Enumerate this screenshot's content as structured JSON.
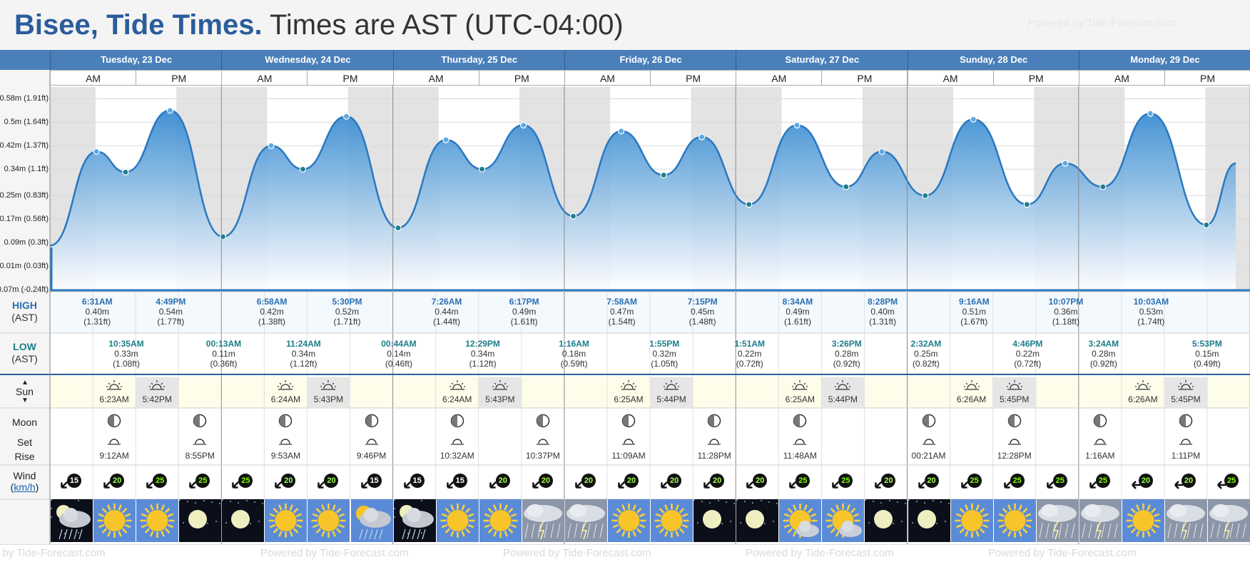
{
  "header": {
    "place": "Bisee, Tide Times.",
    "timezone": "Times are AST (UTC-04:00)",
    "powered": "Powered by Tide-Forecast.com"
  },
  "axis_labels": [
    "0.58m (1.91ft)",
    "0.5m (1.64ft)",
    "0.42m (1.37ft)",
    "0.34m (1.1ft)",
    "0.25m (0.83ft)",
    "0.17m (0.56ft)",
    "0.09m (0.3ft)",
    "0.01m (0.03ft)",
    "-0.07m (-0.24ft)"
  ],
  "days": [
    "Tuesday, 23 Dec",
    "Wednesday, 24 Dec",
    "Thursday, 25 Dec",
    "Friday, 26 Dec",
    "Saturday, 27 Dec",
    "Sunday, 28 Dec",
    "Monday, 29 Dec"
  ],
  "ampm": [
    "AM",
    "PM"
  ],
  "row_labels": {
    "high": "HIGH",
    "low": "LOW",
    "tz": "(AST)",
    "sun": "Sun",
    "moon": "Moon",
    "set": "Set",
    "rise": "Rise",
    "wind": "Wind",
    "wind_unit": "km/h"
  },
  "colors": {
    "brand": "#2b5d9b",
    "day_header": "#4a7fba",
    "tide_fill": "#2f86cf",
    "night_band": "#e3e3e3",
    "sun_row": "#fdfdea"
  },
  "chart_data": {
    "type": "area",
    "title": "Bisee, Tide Times.",
    "subtitle": "Times are AST (UTC-04:00)",
    "ylabel": "",
    "xlabel": "",
    "ylim": [
      -0.07,
      0.62
    ],
    "unit": "m",
    "grid": true,
    "series": [
      {
        "name": "",
        "points": [
          {
            "day": 0,
            "time": "0:00",
            "height": 0.08
          },
          {
            "day": 0,
            "time": "6:31",
            "height": 0.4,
            "kind": "high"
          },
          {
            "day": 0,
            "time": "10:35",
            "height": 0.33,
            "kind": "low"
          },
          {
            "day": 0,
            "time": "16:49",
            "height": 0.54,
            "kind": "high"
          },
          {
            "day": 1,
            "time": "0:13",
            "height": 0.11,
            "kind": "low"
          },
          {
            "day": 1,
            "time": "6:58",
            "height": 0.42,
            "kind": "high"
          },
          {
            "day": 1,
            "time": "11:24",
            "height": 0.34,
            "kind": "low"
          },
          {
            "day": 1,
            "time": "17:30",
            "height": 0.52,
            "kind": "high"
          },
          {
            "day": 2,
            "time": "0:44",
            "height": 0.14,
            "kind": "low"
          },
          {
            "day": 2,
            "time": "7:26",
            "height": 0.44,
            "kind": "high"
          },
          {
            "day": 2,
            "time": "12:29",
            "height": 0.34,
            "kind": "low"
          },
          {
            "day": 2,
            "time": "18:17",
            "height": 0.49,
            "kind": "high"
          },
          {
            "day": 3,
            "time": "1:16",
            "height": 0.18,
            "kind": "low"
          },
          {
            "day": 3,
            "time": "7:58",
            "height": 0.47,
            "kind": "high"
          },
          {
            "day": 3,
            "time": "13:55",
            "height": 0.32,
            "kind": "low"
          },
          {
            "day": 3,
            "time": "19:15",
            "height": 0.45,
            "kind": "high"
          },
          {
            "day": 4,
            "time": "1:51",
            "height": 0.22,
            "kind": "low"
          },
          {
            "day": 4,
            "time": "8:34",
            "height": 0.49,
            "kind": "high"
          },
          {
            "day": 4,
            "time": "15:26",
            "height": 0.28,
            "kind": "low"
          },
          {
            "day": 4,
            "time": "20:28",
            "height": 0.4,
            "kind": "high"
          },
          {
            "day": 5,
            "time": "2:32",
            "height": 0.25,
            "kind": "low"
          },
          {
            "day": 5,
            "time": "9:16",
            "height": 0.51,
            "kind": "high"
          },
          {
            "day": 5,
            "time": "16:46",
            "height": 0.22,
            "kind": "low"
          },
          {
            "day": 5,
            "time": "22:07",
            "height": 0.36,
            "kind": "high"
          },
          {
            "day": 6,
            "time": "3:24",
            "height": 0.28,
            "kind": "low"
          },
          {
            "day": 6,
            "time": "10:03",
            "height": 0.53,
            "kind": "high"
          },
          {
            "day": 6,
            "time": "17:53",
            "height": 0.15,
            "kind": "low"
          },
          {
            "day": 6,
            "time": "22:00",
            "height": 0.36
          }
        ]
      }
    ]
  },
  "tides": {
    "high": [
      {
        "day": 0,
        "time": "6:31AM",
        "m": "0.40m",
        "ft": "(1.31ft)"
      },
      {
        "day": 0,
        "time": "4:49PM",
        "m": "0.54m",
        "ft": "(1.77ft)"
      },
      {
        "day": 1,
        "time": "6:58AM",
        "m": "0.42m",
        "ft": "(1.38ft)"
      },
      {
        "day": 1,
        "time": "5:30PM",
        "m": "0.52m",
        "ft": "(1.71ft)"
      },
      {
        "day": 2,
        "time": "7:26AM",
        "m": "0.44m",
        "ft": "(1.44ft)"
      },
      {
        "day": 2,
        "time": "6:17PM",
        "m": "0.49m",
        "ft": "(1.61ft)"
      },
      {
        "day": 3,
        "time": "7:58AM",
        "m": "0.47m",
        "ft": "(1.54ft)"
      },
      {
        "day": 3,
        "time": "7:15PM",
        "m": "0.45m",
        "ft": "(1.48ft)"
      },
      {
        "day": 4,
        "time": "8:34AM",
        "m": "0.49m",
        "ft": "(1.61ft)"
      },
      {
        "day": 4,
        "time": "8:28PM",
        "m": "0.40m",
        "ft": "(1.31ft)"
      },
      {
        "day": 5,
        "time": "9:16AM",
        "m": "0.51m",
        "ft": "(1.67ft)"
      },
      {
        "day": 5,
        "time": "10:07PM",
        "m": "0.36m",
        "ft": "(1.18ft)"
      },
      {
        "day": 6,
        "time": "10:03AM",
        "m": "0.53m",
        "ft": "(1.74ft)"
      }
    ],
    "low": [
      {
        "day": 0,
        "time": "10:35AM",
        "m": "0.33m",
        "ft": "(1.08ft)"
      },
      {
        "day": 1,
        "time": "00:13AM",
        "m": "0.11m",
        "ft": "(0.36ft)"
      },
      {
        "day": 1,
        "time": "11:24AM",
        "m": "0.34m",
        "ft": "(1.12ft)"
      },
      {
        "day": 2,
        "time": "00:44AM",
        "m": "0.14m",
        "ft": "(0.46ft)"
      },
      {
        "day": 2,
        "time": "12:29PM",
        "m": "0.34m",
        "ft": "(1.12ft)"
      },
      {
        "day": 3,
        "time": "1:16AM",
        "m": "0.18m",
        "ft": "(0.59ft)"
      },
      {
        "day": 3,
        "time": "1:55PM",
        "m": "0.32m",
        "ft": "(1.05ft)"
      },
      {
        "day": 4,
        "time": "1:51AM",
        "m": "0.22m",
        "ft": "(0.72ft)"
      },
      {
        "day": 4,
        "time": "3:26PM",
        "m": "0.28m",
        "ft": "(0.92ft)"
      },
      {
        "day": 5,
        "time": "2:32AM",
        "m": "0.25m",
        "ft": "(0.82ft)"
      },
      {
        "day": 5,
        "time": "4:46PM",
        "m": "0.22m",
        "ft": "(0.72ft)"
      },
      {
        "day": 6,
        "time": "3:24AM",
        "m": "0.28m",
        "ft": "(0.92ft)"
      },
      {
        "day": 6,
        "time": "5:53PM",
        "m": "0.15m",
        "ft": "(0.49ft)"
      }
    ]
  },
  "sun": [
    {
      "rise": "6:23AM",
      "set": "5:42PM"
    },
    {
      "rise": "6:24AM",
      "set": "5:43PM"
    },
    {
      "rise": "6:24AM",
      "set": "5:43PM"
    },
    {
      "rise": "6:25AM",
      "set": "5:44PM"
    },
    {
      "rise": "6:25AM",
      "set": "5:44PM"
    },
    {
      "rise": "6:26AM",
      "set": "5:45PM"
    },
    {
      "rise": "6:26AM",
      "set": "5:45PM"
    }
  ],
  "moon": [
    {
      "time": "9:12AM",
      "slot": 1
    },
    {
      "time": "8:55PM",
      "slot": 3
    },
    {
      "time": "9:53AM",
      "slot": 5
    },
    {
      "time": "9:46PM",
      "slot": 7
    },
    {
      "time": "10:32AM",
      "slot": 9
    },
    {
      "time": "10:37PM",
      "slot": 11
    },
    {
      "time": "11:09AM",
      "slot": 13
    },
    {
      "time": "11:28PM",
      "slot": 15
    },
    {
      "time": "11:48AM",
      "slot": 17
    },
    {
      "time": "00:21AM",
      "slot": 20
    },
    {
      "time": "12:28PM",
      "slot": 22
    },
    {
      "time": "1:16AM",
      "slot": 24
    },
    {
      "time": "1:11PM",
      "slot": 26
    }
  ],
  "wind": [
    15,
    20,
    25,
    25,
    25,
    20,
    20,
    15,
    15,
    15,
    20,
    20,
    20,
    20,
    20,
    20,
    20,
    25,
    25,
    20,
    20,
    25,
    25,
    25,
    25,
    20,
    20,
    25
  ],
  "weather_icons": [
    "rain-cloud-night-icon",
    "sun-icon",
    "sun-icon",
    "moon-icon",
    "moon-icon",
    "sun-icon",
    "sun-icon",
    "rain-cloud-icon",
    "rain-cloud-night-icon",
    "sun-icon",
    "sun-icon",
    "thunderstorm-icon",
    "thunderstorm-icon",
    "sun-icon",
    "sun-icon",
    "moon-icon",
    "moon-icon",
    "sun-cloud-icon",
    "sun-cloud-icon",
    "moon-icon",
    "moon-icon",
    "sun-icon",
    "sun-icon",
    "thunderstorm-icon",
    "thunderstorm-icon",
    "sun-icon",
    "thunderstorm-icon",
    "thunderstorm-icon"
  ]
}
